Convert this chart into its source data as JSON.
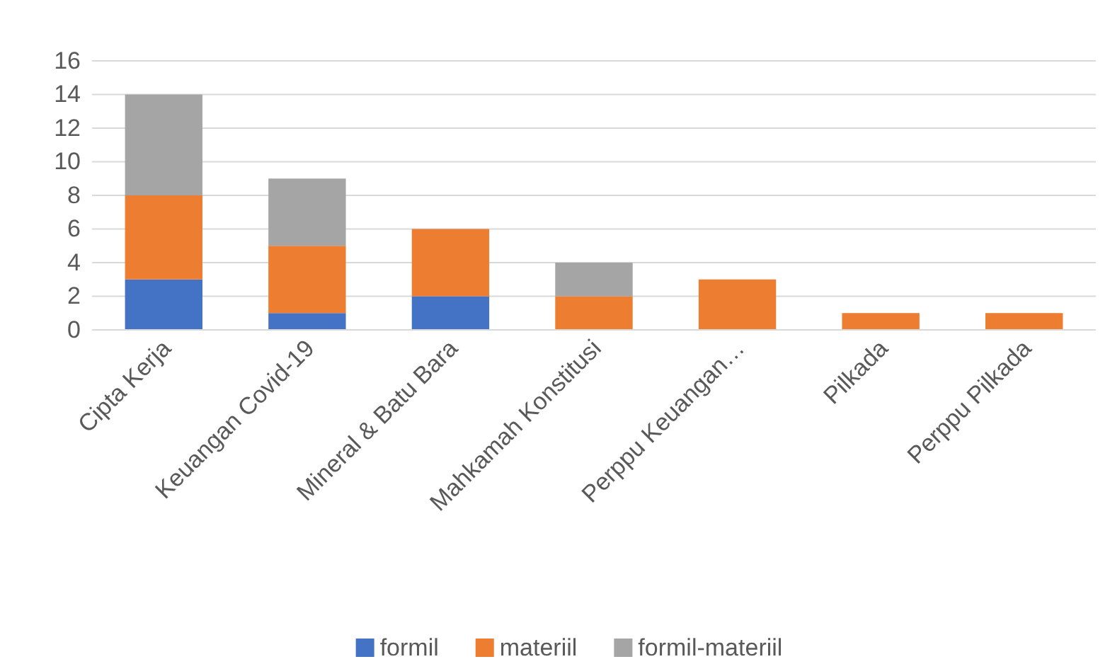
{
  "chart_data": {
    "type": "bar",
    "stacked": true,
    "categories": [
      "Cipta Kerja",
      "Keuangan Covid-19",
      "Mineral & Batu Bara",
      "Mahkamah Konstitusi",
      "Perppu Keuangan…",
      "Pilkada",
      "Perppu Pilkada"
    ],
    "series": [
      {
        "name": "formil",
        "color": "#4472c4",
        "values": [
          3,
          1,
          2,
          0,
          0,
          0,
          0
        ]
      },
      {
        "name": "materiil",
        "color": "#ed7d31",
        "values": [
          5,
          4,
          4,
          2,
          3,
          1,
          1
        ]
      },
      {
        "name": "formil-materiil",
        "color": "#a5a5a5",
        "values": [
          6,
          4,
          0,
          2,
          0,
          0,
          0
        ]
      }
    ],
    "ylim": [
      0,
      16
    ],
    "yticks": [
      0,
      2,
      4,
      6,
      8,
      10,
      12,
      14,
      16
    ],
    "grid": "y",
    "legend": "bottom"
  }
}
